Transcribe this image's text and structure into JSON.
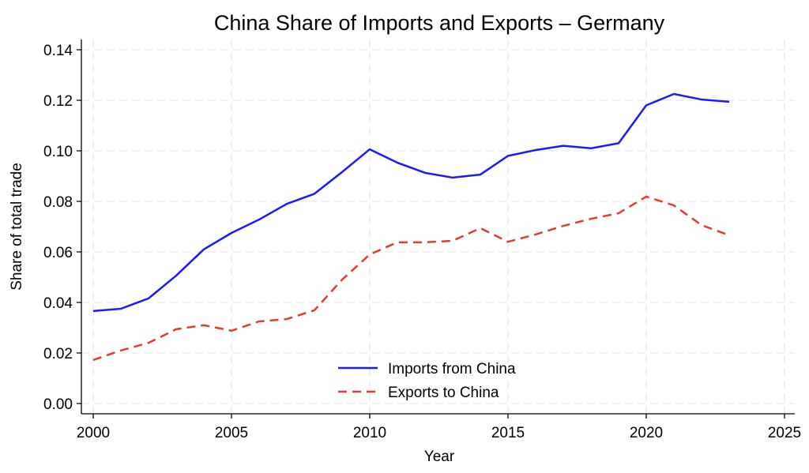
{
  "chart_data": {
    "type": "line",
    "title": "China Share of Imports and Exports  –  Germany",
    "xlabel": "Year",
    "ylabel": "Share of total trade",
    "xlim": [
      2000,
      2025
    ],
    "ylim": [
      0,
      0.14
    ],
    "xticks": [
      "2000",
      "2005",
      "2010",
      "2015",
      "2020",
      "2025"
    ],
    "yticks": [
      "0.00",
      "0.02",
      "0.04",
      "0.06",
      "0.08",
      "0.10",
      "0.12",
      "0.14"
    ],
    "grid": true,
    "legend_position": "bottom-center",
    "x": [
      2000,
      2001,
      2002,
      2003,
      2004,
      2005,
      2006,
      2007,
      2008,
      2009,
      2010,
      2011,
      2012,
      2013,
      2014,
      2015,
      2016,
      2017,
      2018,
      2019,
      2020,
      2021,
      2022,
      2023
    ],
    "series": [
      {
        "name": "Imports from China",
        "color": "#1a1aff",
        "style": "solid",
        "values": [
          0.0366,
          0.0375,
          0.0416,
          0.0506,
          0.061,
          0.0675,
          0.0728,
          0.079,
          0.083,
          0.0916,
          0.1006,
          0.0953,
          0.0913,
          0.0894,
          0.0906,
          0.098,
          0.1003,
          0.102,
          0.101,
          0.103,
          0.118,
          0.1225,
          0.1203,
          0.1194
        ]
      },
      {
        "name": "Exports to China",
        "color": "#e8392e",
        "style": "dashed",
        "values": [
          0.0172,
          0.021,
          0.024,
          0.0294,
          0.031,
          0.0288,
          0.0325,
          0.0334,
          0.0369,
          0.049,
          0.059,
          0.0638,
          0.0638,
          0.0644,
          0.0694,
          0.064,
          0.0669,
          0.0703,
          0.0731,
          0.0753,
          0.0819,
          0.0784,
          0.0706,
          0.0666
        ]
      }
    ]
  }
}
